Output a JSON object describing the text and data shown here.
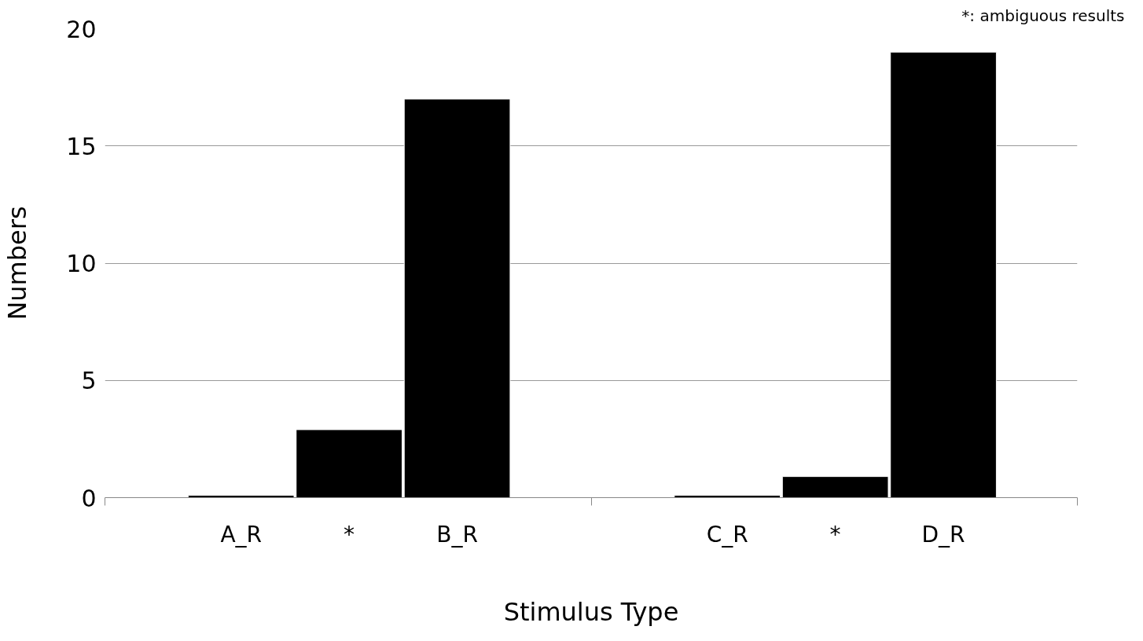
{
  "chart_data": {
    "type": "bar",
    "xlabel": "Stimulus Type",
    "ylabel": "Numbers",
    "categories": [
      "A_R",
      "*",
      "B_R",
      "C_R",
      "*",
      "D_R"
    ],
    "values": [
      0.1,
      2.9,
      17,
      0.1,
      0.9,
      19
    ],
    "color": "#000000",
    "ylim": [
      0,
      20
    ],
    "yticks": [
      0,
      5,
      10,
      15,
      20
    ],
    "grid": "y",
    "annotations": [
      "*: ambiguous results"
    ]
  }
}
